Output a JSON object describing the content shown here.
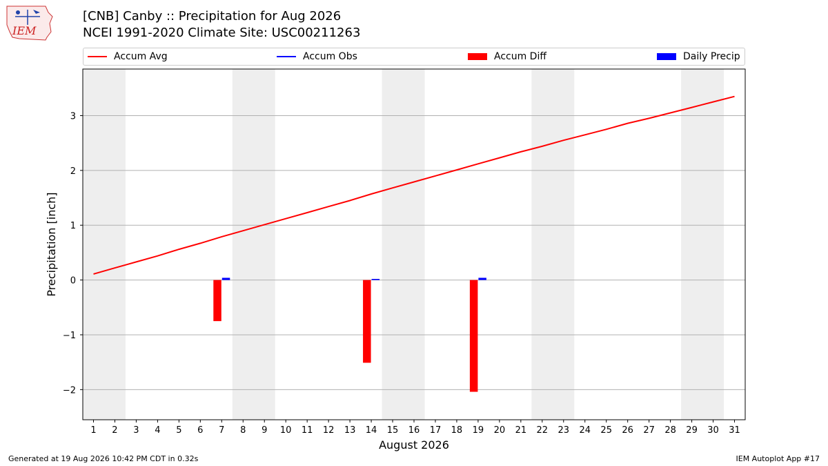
{
  "header": {
    "logo_text": "IEM",
    "title_line1": "[CNB] Canby :: Precipitation for Aug 2026",
    "title_line2": "NCEI 1991-2020 Climate Site: USC00211263"
  },
  "footer": {
    "left": "Generated at 19 Aug 2026 10:42 PM CDT in 0.32s",
    "right": "IEM Autoplot App #17"
  },
  "colors": {
    "accum_avg": "#ff0000",
    "accum_obs": "#0000ff",
    "accum_diff": "#ff0000",
    "daily_precip": "#0000ff",
    "weekend_shade": "#eeeeee",
    "grid": "#b0b0b0"
  },
  "chart_data": {
    "type": "bar",
    "title": "[CNB] Canby :: Precipitation for Aug 2026",
    "subtitle": "NCEI 1991-2020 Climate Site: USC00211263",
    "xlabel": "August 2026",
    "ylabel": "Precipitation [inch]",
    "xlim": [
      0.5,
      31.5
    ],
    "ylim": [
      -2.55,
      3.85
    ],
    "x_ticks": [
      1,
      2,
      3,
      4,
      5,
      6,
      7,
      8,
      9,
      10,
      11,
      12,
      13,
      14,
      15,
      16,
      17,
      18,
      19,
      20,
      21,
      22,
      23,
      24,
      25,
      26,
      27,
      28,
      29,
      30,
      31
    ],
    "y_ticks": [
      {
        "value": -2,
        "label": "−2"
      },
      {
        "value": -1,
        "label": "−1"
      },
      {
        "value": 0,
        "label": "0"
      },
      {
        "value": 1,
        "label": "1"
      },
      {
        "value": 2,
        "label": "2"
      },
      {
        "value": 3,
        "label": "3"
      }
    ],
    "grid": "horizontal",
    "legend_position": "top",
    "legend": [
      "Accum Avg",
      "Accum Obs",
      "Accum Diff",
      "Daily Precip"
    ],
    "weekend_ranges": [
      [
        0.5,
        2.5
      ],
      [
        7.5,
        9.5
      ],
      [
        14.5,
        16.5
      ],
      [
        21.5,
        23.5
      ],
      [
        28.5,
        30.5
      ]
    ],
    "series": [
      {
        "name": "Accum Avg",
        "kind": "line",
        "x": [
          1,
          2,
          3,
          4,
          5,
          6,
          7,
          8,
          9,
          10,
          11,
          12,
          13,
          14,
          15,
          16,
          17,
          18,
          19,
          20,
          21,
          22,
          23,
          24,
          25,
          26,
          27,
          28,
          29,
          30,
          31
        ],
        "values": [
          0.11,
          0.22,
          0.33,
          0.44,
          0.56,
          0.67,
          0.79,
          0.9,
          1.01,
          1.12,
          1.23,
          1.34,
          1.45,
          1.57,
          1.68,
          1.79,
          1.9,
          2.01,
          2.12,
          2.23,
          2.34,
          2.44,
          2.55,
          2.65,
          2.75,
          2.86,
          2.95,
          3.05,
          3.15,
          3.25,
          3.35
        ]
      },
      {
        "name": "Accum Diff",
        "kind": "bar",
        "x": [
          7,
          14,
          19
        ],
        "values": [
          -0.75,
          -1.51,
          -2.04
        ]
      },
      {
        "name": "Daily Precip",
        "kind": "bar",
        "x": [
          7,
          14,
          19
        ],
        "values": [
          0.04,
          0.02,
          0.04
        ]
      }
    ]
  }
}
